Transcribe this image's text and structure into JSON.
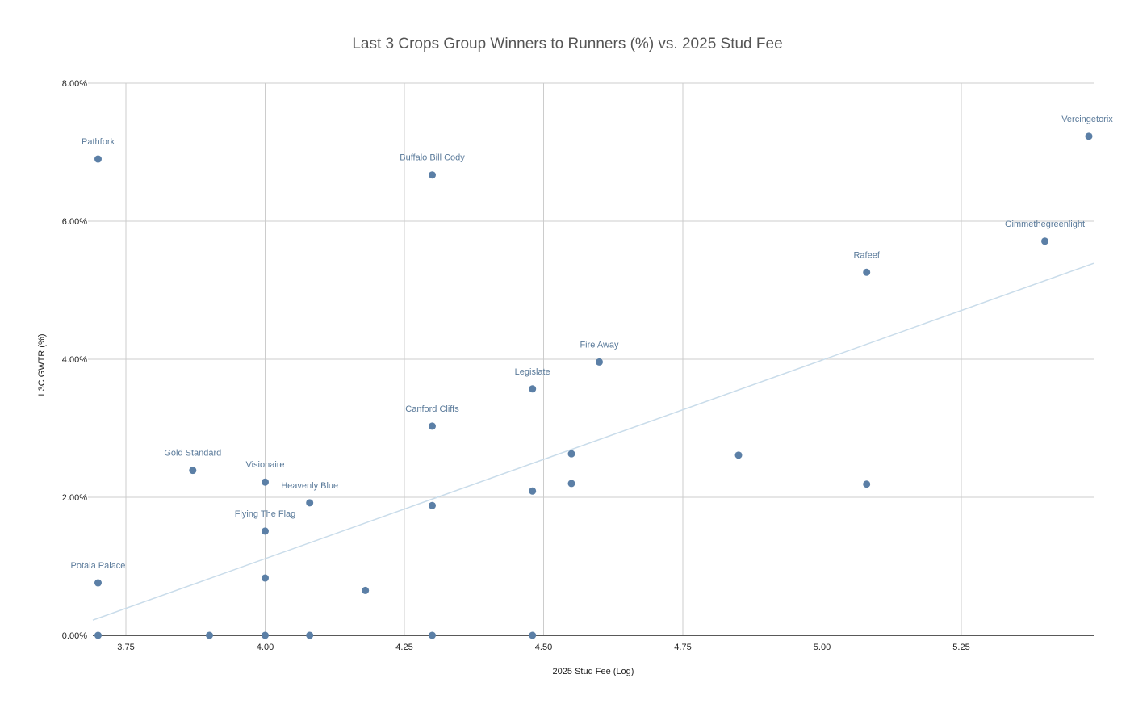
{
  "chart_data": {
    "type": "scatter",
    "title": "Last 3 Crops Group Winners to Runners (%) vs. 2025 Stud Fee",
    "xlabel": "2025 Stud Fee (Log)",
    "ylabel": "L3C GWTR (%)",
    "xlim": [
      3.69,
      5.49
    ],
    "ylim": [
      0,
      8
    ],
    "x_ticks": [
      "3.75",
      "4.00",
      "4.25",
      "4.50",
      "4.75",
      "5.00",
      "5.25"
    ],
    "y_ticks": [
      "0.00%",
      "2.00%",
      "4.00%",
      "6.00%",
      "8.00%"
    ],
    "grid": true,
    "legend": "none",
    "series": [
      {
        "name": "L3C GWTR (%)",
        "color": "#5b7fa6",
        "points": [
          {
            "label": "Pathfork",
            "x": 3.7,
            "y": 6.9
          },
          {
            "label": "Buffalo Bill Cody",
            "x": 4.3,
            "y": 6.67
          },
          {
            "label": "Vercingetorix",
            "x": 5.48,
            "y": 7.23
          },
          {
            "label": "Gimmethegreenlight",
            "x": 5.4,
            "y": 5.71
          },
          {
            "label": "Rafeef",
            "x": 5.08,
            "y": 5.26
          },
          {
            "label": "Fire Away",
            "x": 4.6,
            "y": 3.96
          },
          {
            "label": "Legislate",
            "x": 4.48,
            "y": 3.57
          },
          {
            "label": "Canford Cliffs",
            "x": 4.3,
            "y": 3.03
          },
          {
            "label": "",
            "x": 4.55,
            "y": 2.63
          },
          {
            "label": "",
            "x": 4.85,
            "y": 2.61
          },
          {
            "label": "Gold Standard",
            "x": 3.87,
            "y": 2.39
          },
          {
            "label": "Visionaire",
            "x": 4.0,
            "y": 2.22
          },
          {
            "label": "",
            "x": 4.55,
            "y": 2.2
          },
          {
            "label": "",
            "x": 5.08,
            "y": 2.19
          },
          {
            "label": "",
            "x": 4.48,
            "y": 2.09
          },
          {
            "label": "Heavenly Blue",
            "x": 4.08,
            "y": 1.92
          },
          {
            "label": "",
            "x": 4.3,
            "y": 1.88
          },
          {
            "label": "Flying The Flag",
            "x": 4.0,
            "y": 1.51
          },
          {
            "label": "",
            "x": 4.0,
            "y": 0.83
          },
          {
            "label": "Potala Palace",
            "x": 3.7,
            "y": 0.76
          },
          {
            "label": "",
            "x": 4.18,
            "y": 0.65
          },
          {
            "label": "",
            "x": 3.7,
            "y": 0.0
          },
          {
            "label": "",
            "x": 3.9,
            "y": 0.0
          },
          {
            "label": "",
            "x": 4.0,
            "y": 0.0
          },
          {
            "label": "",
            "x": 4.08,
            "y": 0.0
          },
          {
            "label": "",
            "x": 4.3,
            "y": 0.0
          },
          {
            "label": "",
            "x": 4.48,
            "y": 0.0
          }
        ]
      }
    ],
    "trendline": {
      "type": "linear",
      "color": "#c9dcea",
      "x": [
        3.69,
        5.49
      ],
      "y": [
        0.22,
        5.39
      ]
    }
  }
}
